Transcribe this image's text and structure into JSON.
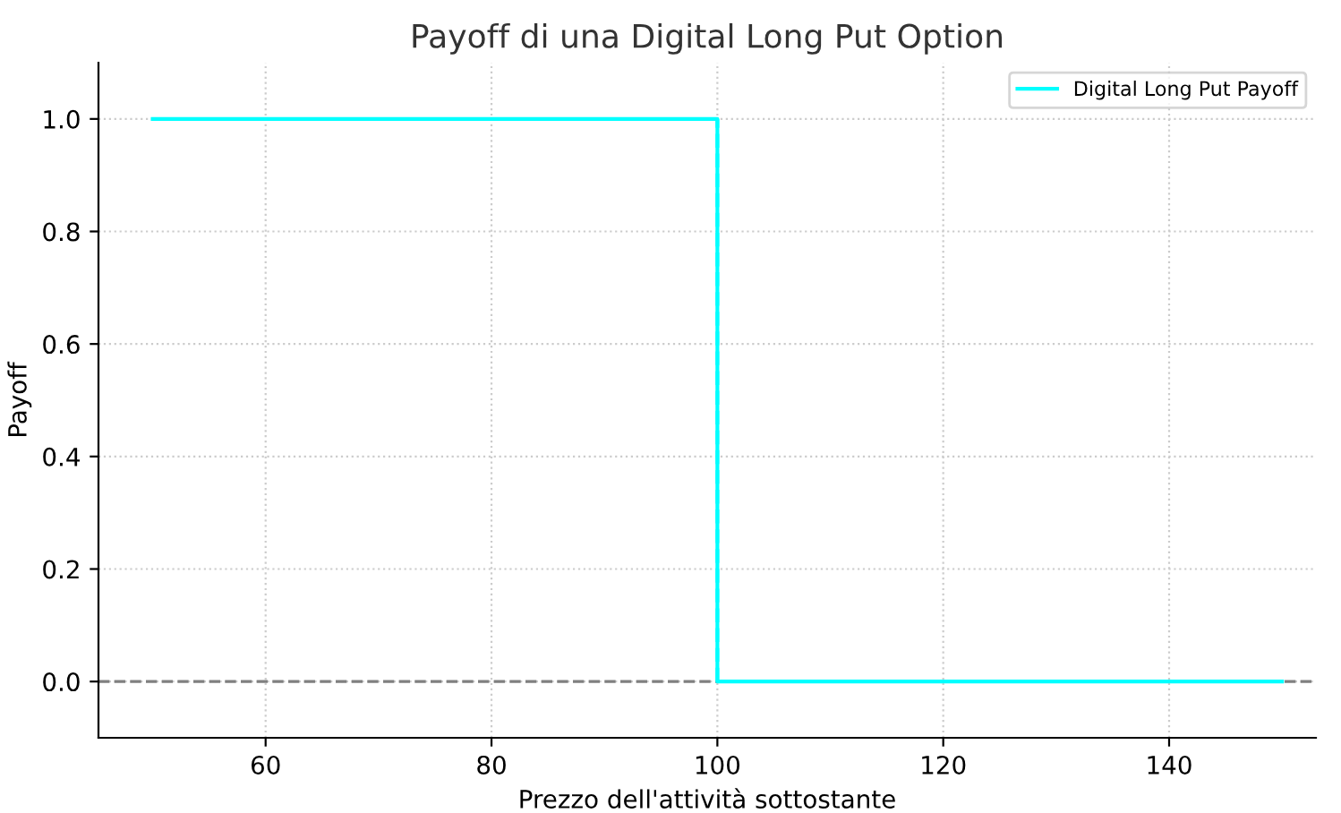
{
  "chart_data": {
    "type": "line",
    "title": "Payoff di una Digital Long Put Option",
    "xlabel": "Prezzo dell'attività sottostante",
    "ylabel": "Payoff",
    "series": [
      {
        "name": "Digital Long Put Payoff",
        "color": "#00ffff",
        "type": "step",
        "x": [
          50,
          100,
          150
        ],
        "values": [
          1,
          0,
          0
        ],
        "line_style": "solid"
      },
      {
        "color": "#00ffff",
        "x": [
          100,
          100
        ],
        "values": [
          0,
          1
        ],
        "line_style": "dashed"
      }
    ],
    "ref_lines": [
      {
        "axis": "y",
        "value": 0,
        "color": "#808080",
        "line_style": "dashed"
      }
    ],
    "xlim": [
      45.2,
      153
    ],
    "ylim": [
      -0.1,
      1.1
    ],
    "xticks": [
      60,
      80,
      100,
      120,
      140
    ],
    "yticks": [
      {
        "value": 0,
        "label": "0.0"
      },
      {
        "value": 0.2,
        "label": "0.2"
      },
      {
        "value": 0.4,
        "label": "0.4"
      },
      {
        "value": 0.6,
        "label": "0.6"
      },
      {
        "value": 0.8,
        "label": "0.8"
      },
      {
        "value": 1,
        "label": "1.0"
      }
    ],
    "grid": true,
    "legend": "top right"
  }
}
